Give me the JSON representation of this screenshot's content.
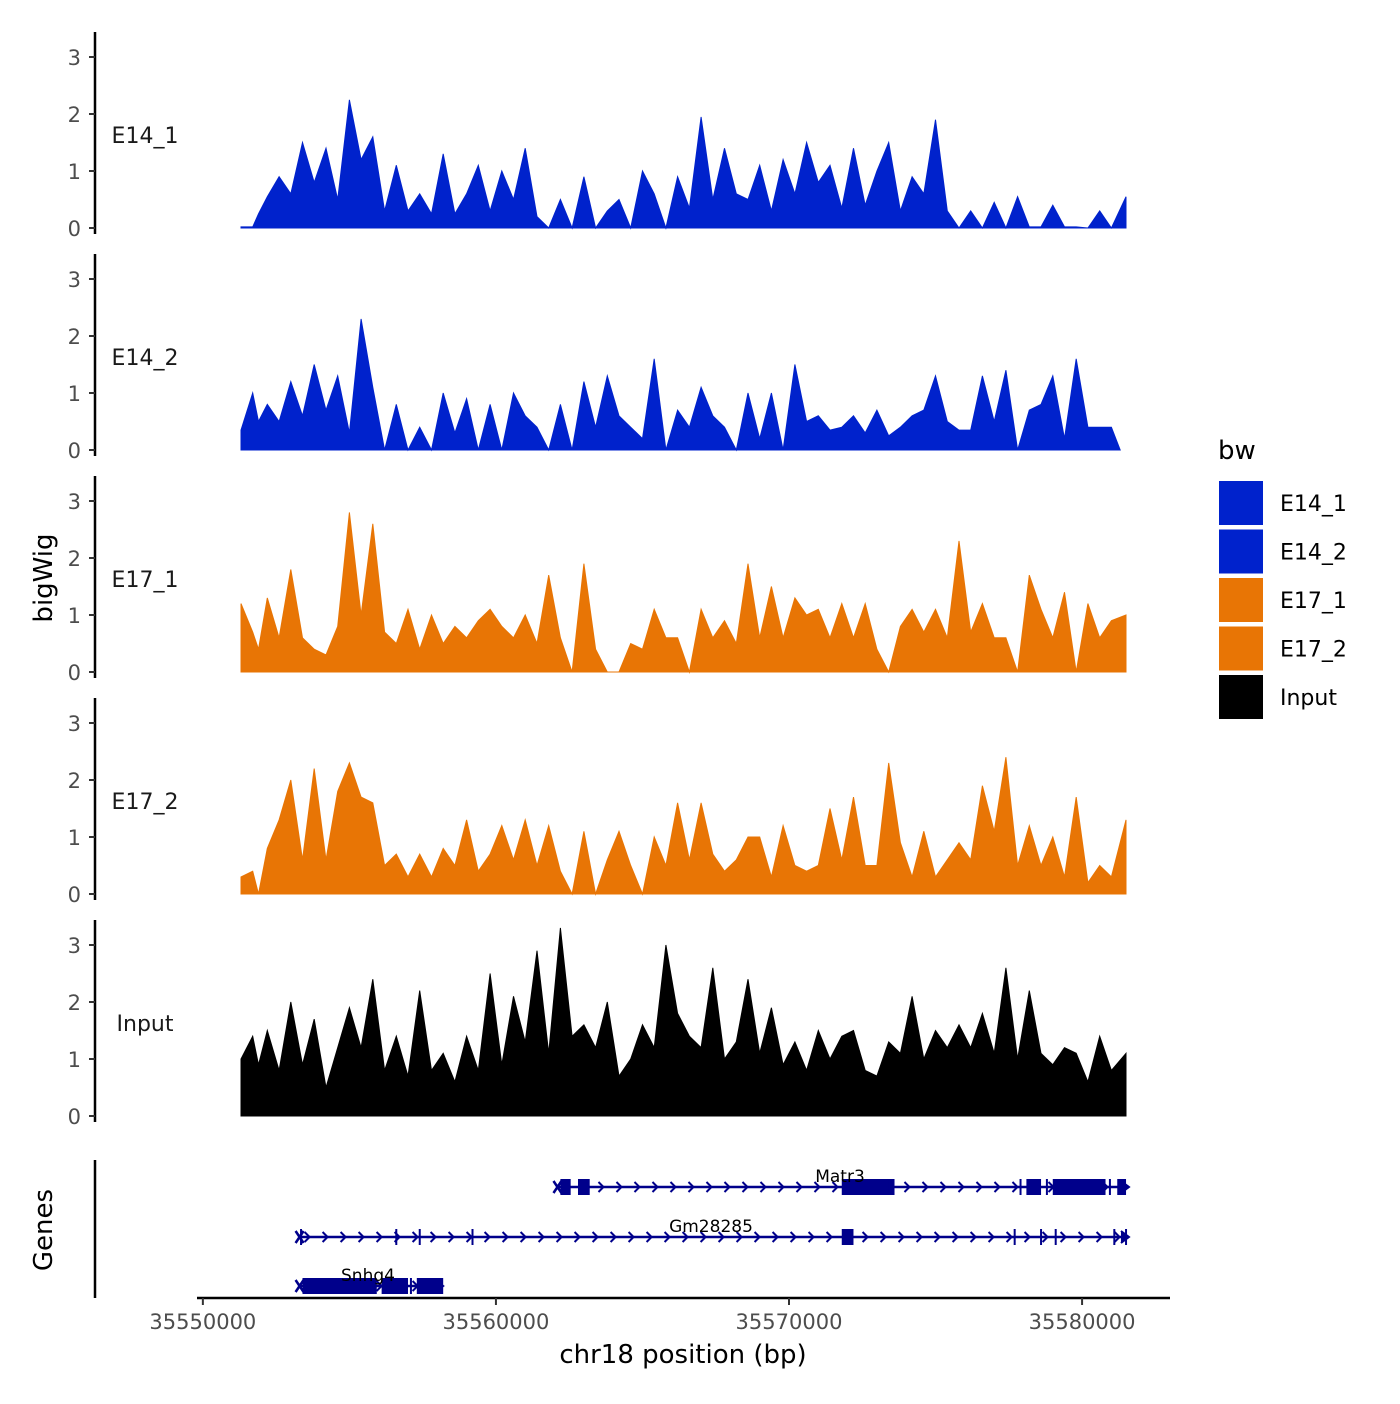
{
  "chart_data": {
    "type": "area",
    "title": "",
    "xlabel": "chr18 position (bp)",
    "ylabel_tracks": "bigWig",
    "ylabel_genes": "Genes",
    "xlim": [
      35549800,
      35583000
    ],
    "x_ticks": [
      35550000,
      35560000,
      35570000,
      35580000
    ],
    "x_tick_labels": [
      "35550000",
      "35560000",
      "35570000",
      "35580000"
    ],
    "ylim": [
      0,
      3.3
    ],
    "y_ticks": [
      0,
      1,
      2,
      3
    ],
    "y_tick_labels": [
      "0",
      "1",
      "2",
      "3"
    ],
    "legend": {
      "title": "bw",
      "position": "right",
      "entries": [
        {
          "label": "E14_1",
          "color": "#0022CC"
        },
        {
          "label": "E14_2",
          "color": "#0022CC"
        },
        {
          "label": "E17_1",
          "color": "#E87505"
        },
        {
          "label": "E17_2",
          "color": "#E87505"
        },
        {
          "label": "Input",
          "color": "#000000"
        }
      ]
    },
    "series": [
      {
        "name": "E14_1",
        "color": "#0022CC",
        "x": [
          35551300,
          35551700,
          35551900,
          35552200,
          35552600,
          35553000,
          35553400,
          35553800,
          35554200,
          35554600,
          35555000,
          35555400,
          35555800,
          35556200,
          35556600,
          35557000,
          35557400,
          35557800,
          35558200,
          35558600,
          35559000,
          35559400,
          35559800,
          35560200,
          35560600,
          35561000,
          35561400,
          35561800,
          35562200,
          35562600,
          35563000,
          35563400,
          35563800,
          35564200,
          35564600,
          35565000,
          35565400,
          35565800,
          35566200,
          35566600,
          35567000,
          35567400,
          35567800,
          35568200,
          35568600,
          35569000,
          35569400,
          35569800,
          35570200,
          35570600,
          35571000,
          35571400,
          35571800,
          35572200,
          35572600,
          35573000,
          35573400,
          35573800,
          35574200,
          35574600,
          35575000,
          35575400,
          35575800,
          35576200,
          35576600,
          35577000,
          35577400,
          35577800,
          35578200,
          35578600,
          35579000,
          35579400,
          35579800,
          35580200,
          35580600,
          35581000,
          35581500
        ],
        "values": [
          0.02,
          0.02,
          0.25,
          0.55,
          0.9,
          0.6,
          1.5,
          0.8,
          1.4,
          0.5,
          2.25,
          1.2,
          1.6,
          0.3,
          1.1,
          0.3,
          0.6,
          0.25,
          1.3,
          0.25,
          0.6,
          1.1,
          0.3,
          1.0,
          0.5,
          1.4,
          0.2,
          0,
          0.5,
          0,
          0.9,
          0,
          0.3,
          0.5,
          0,
          1.0,
          0.6,
          0,
          0.9,
          0.35,
          1.95,
          0.5,
          1.4,
          0.6,
          0.5,
          1.1,
          0.3,
          1.2,
          0.6,
          1.5,
          0.8,
          1.1,
          0.35,
          1.4,
          0.4,
          1.0,
          1.5,
          0.3,
          0.9,
          0.6,
          1.9,
          0.3,
          0,
          0.3,
          0,
          0.45,
          0,
          0.55,
          0.02,
          0.02,
          0.4,
          0.02,
          0.02,
          0,
          0.3,
          0,
          0.55
        ]
      },
      {
        "name": "E14_2",
        "color": "#0022CC",
        "x": [
          35551300,
          35551700,
          35551900,
          35552200,
          35552600,
          35553000,
          35553400,
          35553800,
          35554200,
          35554600,
          35555000,
          35555400,
          35555800,
          35556200,
          35556600,
          35557000,
          35557400,
          35557800,
          35558200,
          35558600,
          35559000,
          35559400,
          35559800,
          35560200,
          35560600,
          35561000,
          35561400,
          35561800,
          35562200,
          35562600,
          35563000,
          35563400,
          35563800,
          35564200,
          35564600,
          35565000,
          35565400,
          35565800,
          35566200,
          35566600,
          35567000,
          35567400,
          35567800,
          35568200,
          35568600,
          35569000,
          35569400,
          35569800,
          35570200,
          35570600,
          35571000,
          35571400,
          35571800,
          35572200,
          35572600,
          35573000,
          35573400,
          35573800,
          35574200,
          35574600,
          35575000,
          35575400,
          35575800,
          35576200,
          35576600,
          35577000,
          35577400,
          35577800,
          35578200,
          35578600,
          35579000,
          35579400,
          35579800,
          35580200,
          35580600,
          35581000,
          35581300
        ],
        "values": [
          0.35,
          1.0,
          0.5,
          0.8,
          0.5,
          1.2,
          0.6,
          1.5,
          0.7,
          1.3,
          0.3,
          2.3,
          1.1,
          0,
          0.8,
          0,
          0.4,
          0,
          1.0,
          0.3,
          0.9,
          0,
          0.8,
          0,
          1.0,
          0.6,
          0.4,
          0,
          0.8,
          0,
          1.2,
          0.4,
          1.3,
          0.6,
          0.4,
          0.2,
          1.6,
          0,
          0.7,
          0.4,
          1.1,
          0.6,
          0.4,
          0,
          1.0,
          0.2,
          1.0,
          0,
          1.5,
          0.5,
          0.6,
          0.35,
          0.4,
          0.6,
          0.3,
          0.7,
          0.25,
          0.4,
          0.6,
          0.7,
          1.3,
          0.5,
          0.35,
          0.35,
          1.3,
          0.5,
          1.4,
          0,
          0.7,
          0.8,
          1.3,
          0.2,
          1.6,
          0.4,
          0.4,
          0.4,
          0
        ]
      },
      {
        "name": "E17_1",
        "color": "#E87505",
        "x": [
          35551300,
          35551700,
          35551900,
          35552200,
          35552600,
          35553000,
          35553400,
          35553800,
          35554200,
          35554600,
          35555000,
          35555400,
          35555800,
          35556200,
          35556600,
          35557000,
          35557400,
          35557800,
          35558200,
          35558600,
          35559000,
          35559400,
          35559800,
          35560200,
          35560600,
          35561000,
          35561400,
          35561800,
          35562200,
          35562600,
          35563000,
          35563400,
          35563800,
          35564200,
          35564600,
          35565000,
          35565400,
          35565800,
          35566200,
          35566600,
          35567000,
          35567400,
          35567800,
          35568200,
          35568600,
          35569000,
          35569400,
          35569800,
          35570200,
          35570600,
          35571000,
          35571400,
          35571800,
          35572200,
          35572600,
          35573000,
          35573400,
          35573800,
          35574200,
          35574600,
          35575000,
          35575400,
          35575800,
          35576200,
          35576600,
          35577000,
          35577400,
          35577800,
          35578200,
          35578600,
          35579000,
          35579400,
          35579800,
          35580200,
          35580600,
          35581000,
          35581500
        ],
        "values": [
          1.2,
          0.7,
          0.4,
          1.3,
          0.6,
          1.8,
          0.6,
          0.4,
          0.3,
          0.8,
          2.8,
          1.0,
          2.6,
          0.7,
          0.5,
          1.1,
          0.4,
          1.0,
          0.5,
          0.8,
          0.6,
          0.9,
          1.1,
          0.8,
          0.6,
          1.0,
          0.5,
          1.7,
          0.6,
          0,
          1.9,
          0.4,
          0,
          0,
          0.5,
          0.4,
          1.1,
          0.6,
          0.6,
          0,
          1.1,
          0.6,
          0.9,
          0.5,
          1.9,
          0.6,
          1.5,
          0.6,
          1.3,
          1.0,
          1.1,
          0.6,
          1.2,
          0.6,
          1.2,
          0.4,
          0,
          0.8,
          1.1,
          0.7,
          1.1,
          0.6,
          2.3,
          0.7,
          1.2,
          0.6,
          0.6,
          0,
          1.7,
          1.1,
          0.6,
          1.4,
          0,
          1.2,
          0.6,
          0.9,
          1.0
        ]
      },
      {
        "name": "E17_2",
        "color": "#E87505",
        "x": [
          35551300,
          35551700,
          35551900,
          35552200,
          35552600,
          35553000,
          35553400,
          35553800,
          35554200,
          35554600,
          35555000,
          35555400,
          35555800,
          35556200,
          35556600,
          35557000,
          35557400,
          35557800,
          35558200,
          35558600,
          35559000,
          35559400,
          35559800,
          35560200,
          35560600,
          35561000,
          35561400,
          35561800,
          35562200,
          35562600,
          35563000,
          35563400,
          35563800,
          35564200,
          35564600,
          35565000,
          35565400,
          35565800,
          35566200,
          35566600,
          35567000,
          35567400,
          35567800,
          35568200,
          35568600,
          35569000,
          35569400,
          35569800,
          35570200,
          35570600,
          35571000,
          35571400,
          35571800,
          35572200,
          35572600,
          35573000,
          35573400,
          35573800,
          35574200,
          35574600,
          35575000,
          35575400,
          35575800,
          35576200,
          35576600,
          35577000,
          35577400,
          35577800,
          35578200,
          35578600,
          35579000,
          35579400,
          35579800,
          35580200,
          35580600,
          35581000,
          35581500
        ],
        "values": [
          0.3,
          0.4,
          0,
          0.8,
          1.3,
          2.0,
          0.6,
          2.2,
          0.6,
          1.8,
          2.3,
          1.7,
          1.6,
          0.5,
          0.7,
          0.3,
          0.7,
          0.3,
          0.8,
          0.5,
          1.3,
          0.4,
          0.7,
          1.2,
          0.6,
          1.3,
          0.5,
          1.2,
          0.4,
          0,
          1.1,
          0,
          0.6,
          1.1,
          0.5,
          0,
          1.0,
          0.5,
          1.6,
          0.6,
          1.6,
          0.7,
          0.4,
          0.6,
          1.0,
          1.0,
          0.3,
          1.2,
          0.5,
          0.4,
          0.5,
          1.5,
          0.6,
          1.7,
          0.5,
          0.5,
          2.3,
          0.9,
          0.3,
          1.1,
          0.3,
          0.6,
          0.9,
          0.6,
          1.9,
          1.1,
          2.4,
          0.5,
          1.2,
          0.5,
          1.0,
          0.3,
          1.7,
          0.2,
          0.5,
          0.3,
          1.3
        ]
      },
      {
        "name": "Input",
        "color": "#000000",
        "x": [
          35551300,
          35551700,
          35551900,
          35552200,
          35552600,
          35553000,
          35553400,
          35553800,
          35554200,
          35554600,
          35555000,
          35555400,
          35555800,
          35556200,
          35556600,
          35557000,
          35557400,
          35557800,
          35558200,
          35558600,
          35559000,
          35559400,
          35559800,
          35560200,
          35560600,
          35561000,
          35561400,
          35561800,
          35562200,
          35562600,
          35563000,
          35563400,
          35563800,
          35564200,
          35564600,
          35565000,
          35565400,
          35565800,
          35566200,
          35566600,
          35567000,
          35567400,
          35567800,
          35568200,
          35568600,
          35569000,
          35569400,
          35569800,
          35570200,
          35570600,
          35571000,
          35571400,
          35571800,
          35572200,
          35572600,
          35573000,
          35573400,
          35573800,
          35574200,
          35574600,
          35575000,
          35575400,
          35575800,
          35576200,
          35576600,
          35577000,
          35577400,
          35577800,
          35578200,
          35578600,
          35579000,
          35579400,
          35579800,
          35580200,
          35580600,
          35581000,
          35581500
        ],
        "values": [
          1.0,
          1.4,
          0.9,
          1.5,
          0.8,
          2.0,
          0.9,
          1.7,
          0.5,
          1.2,
          1.9,
          1.2,
          2.4,
          0.8,
          1.4,
          0.7,
          2.2,
          0.8,
          1.1,
          0.6,
          1.4,
          0.8,
          2.5,
          0.9,
          2.1,
          1.3,
          2.9,
          1.1,
          3.3,
          1.4,
          1.6,
          1.2,
          2.0,
          0.7,
          1.0,
          1.6,
          1.2,
          3.0,
          1.8,
          1.4,
          1.2,
          2.6,
          1.0,
          1.3,
          2.4,
          1.1,
          1.9,
          0.9,
          1.3,
          0.8,
          1.5,
          1.0,
          1.4,
          1.5,
          0.8,
          0.7,
          1.3,
          1.1,
          2.1,
          1.0,
          1.5,
          1.2,
          1.6,
          1.2,
          1.8,
          1.1,
          2.6,
          1.0,
          2.2,
          1.1,
          0.9,
          1.2,
          1.1,
          0.6,
          1.4,
          0.8,
          1.1
        ]
      }
    ],
    "genes": [
      {
        "name": "Matr3",
        "row": 0,
        "strand": "+",
        "start": 35562100,
        "end": 35581600,
        "exons": [
          [
            35562200,
            35562550
          ],
          [
            35562800,
            35563200
          ],
          [
            35571800,
            35573600
          ],
          [
            35578100,
            35578600
          ],
          [
            35579000,
            35580800
          ],
          [
            35581200,
            35581500
          ]
        ],
        "markers": [
          35562500,
          35573350,
          35577900,
          35578800,
          35580950
        ]
      },
      {
        "name": "Gm28285",
        "row": 1,
        "strand": "+",
        "start": 35553300,
        "end": 35581600,
        "exons": [
          [
            35571800,
            35572200
          ]
        ],
        "markers": [
          35553350,
          35556600,
          35557400,
          35559200,
          35577700,
          35578600,
          35579100,
          35581100,
          35581500
        ]
      },
      {
        "name": "Snhg4",
        "row": 2,
        "strand": "+",
        "start": 35553300,
        "end": 35558200,
        "exons": [
          [
            35553400,
            35555900
          ],
          [
            35556100,
            35557000
          ],
          [
            35557300,
            35558200
          ]
        ],
        "markers": [
          35555900,
          35557100
        ]
      }
    ]
  }
}
